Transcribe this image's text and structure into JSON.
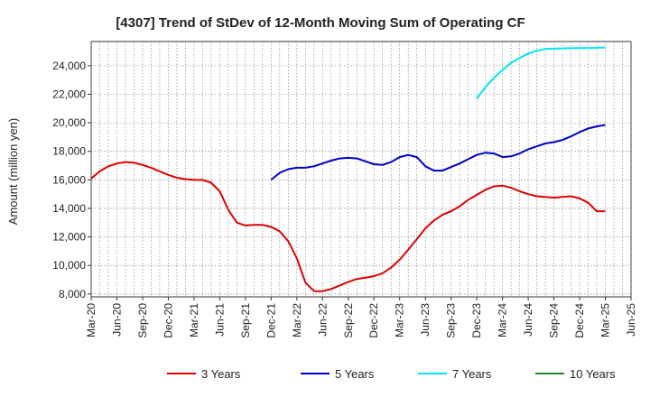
{
  "chart_data": {
    "type": "line",
    "title": "[4307]  Trend of StDev of 12-Month Moving Sum of Operating CF",
    "ylabel": "Amount (million yen)",
    "xlabel": "",
    "ylim": [
      7800,
      25700
    ],
    "yticks": [
      8000,
      10000,
      12000,
      14000,
      16000,
      18000,
      20000,
      22000,
      24000
    ],
    "ytick_labels": [
      "8,000",
      "10,000",
      "12,000",
      "14,000",
      "16,000",
      "18,000",
      "20,000",
      "22,000",
      "24,000"
    ],
    "xrange": [
      "2020-03",
      "2025-06"
    ],
    "xticks": [
      "2020-03",
      "2020-06",
      "2020-09",
      "2020-12",
      "2021-03",
      "2021-06",
      "2021-09",
      "2021-12",
      "2022-03",
      "2022-06",
      "2022-09",
      "2022-12",
      "2023-03",
      "2023-06",
      "2023-09",
      "2023-12",
      "2024-03",
      "2024-06",
      "2024-09",
      "2024-12",
      "2025-03",
      "2025-06"
    ],
    "xtick_labels": [
      "Mar-20",
      "Jun-20",
      "Sep-20",
      "Dec-20",
      "Mar-21",
      "Jun-21",
      "Sep-21",
      "Dec-21",
      "Mar-22",
      "Jun-22",
      "Sep-22",
      "Dec-22",
      "Mar-23",
      "Jun-23",
      "Sep-23",
      "Dec-23",
      "Mar-24",
      "Jun-24",
      "Sep-24",
      "Dec-24",
      "Mar-25",
      "Jun-25"
    ],
    "grid": true,
    "legend_position": "bottom",
    "series": [
      {
        "name": "3 Years",
        "color": "#e00000",
        "x": [
          "2020-03",
          "2020-04",
          "2020-05",
          "2020-06",
          "2020-07",
          "2020-08",
          "2020-09",
          "2020-10",
          "2020-11",
          "2020-12",
          "2021-01",
          "2021-02",
          "2021-03",
          "2021-04",
          "2021-05",
          "2021-06",
          "2021-07",
          "2021-08",
          "2021-09",
          "2021-10",
          "2021-11",
          "2021-12",
          "2022-01",
          "2022-02",
          "2022-03",
          "2022-04",
          "2022-05",
          "2022-06",
          "2022-07",
          "2022-08",
          "2022-09",
          "2022-10",
          "2022-11",
          "2022-12",
          "2023-01",
          "2023-02",
          "2023-03",
          "2023-04",
          "2023-05",
          "2023-06",
          "2023-07",
          "2023-08",
          "2023-09",
          "2023-10",
          "2023-11",
          "2023-12",
          "2024-01",
          "2024-02",
          "2024-03",
          "2024-04",
          "2024-05",
          "2024-06",
          "2024-07",
          "2024-08",
          "2024-09",
          "2024-10",
          "2024-11",
          "2024-12",
          "2025-01",
          "2025-02",
          "2025-03"
        ],
        "values": [
          16100,
          16600,
          16950,
          17150,
          17250,
          17200,
          17050,
          16850,
          16600,
          16350,
          16150,
          16050,
          16000,
          16000,
          15800,
          15200,
          13900,
          13000,
          12800,
          12850,
          12850,
          12700,
          12400,
          11700,
          10500,
          8800,
          8200,
          8200,
          8350,
          8600,
          8850,
          9050,
          9150,
          9250,
          9450,
          9850,
          10400,
          11100,
          11850,
          12600,
          13150,
          13550,
          13800,
          14150,
          14600,
          14950,
          15300,
          15550,
          15600,
          15450,
          15200,
          15000,
          14850,
          14800,
          14750,
          14800,
          14850,
          14700,
          14400,
          13800,
          13800
        ]
      },
      {
        "name": "5 Years",
        "color": "#0000cc",
        "x": [
          "2021-12",
          "2022-01",
          "2022-02",
          "2022-03",
          "2022-04",
          "2022-05",
          "2022-06",
          "2022-07",
          "2022-08",
          "2022-09",
          "2022-10",
          "2022-11",
          "2022-12",
          "2023-01",
          "2023-02",
          "2023-03",
          "2023-04",
          "2023-05",
          "2023-06",
          "2023-07",
          "2023-08",
          "2023-09",
          "2023-10",
          "2023-11",
          "2023-12",
          "2024-01",
          "2024-02",
          "2024-03",
          "2024-04",
          "2024-05",
          "2024-06",
          "2024-07",
          "2024-08",
          "2024-09",
          "2024-10",
          "2024-11",
          "2024-12",
          "2025-01",
          "2025-02",
          "2025-03"
        ],
        "values": [
          16000,
          16500,
          16750,
          16850,
          16850,
          16950,
          17150,
          17350,
          17500,
          17550,
          17500,
          17300,
          17100,
          17050,
          17250,
          17600,
          17750,
          17600,
          16950,
          16650,
          16650,
          16900,
          17150,
          17450,
          17750,
          17900,
          17850,
          17600,
          17650,
          17850,
          18150,
          18350,
          18550,
          18650,
          18800,
          19050,
          19350,
          19600,
          19750,
          19850
        ]
      },
      {
        "name": "7 Years",
        "color": "#00e5ee",
        "x": [
          "2023-12",
          "2024-01",
          "2024-02",
          "2024-03",
          "2024-04",
          "2024-05",
          "2024-06",
          "2024-07",
          "2024-08",
          "2024-09",
          "2024-10",
          "2024-11",
          "2024-12",
          "2025-01",
          "2025-02",
          "2025-03"
        ],
        "values": [
          21700,
          22500,
          23150,
          23700,
          24200,
          24550,
          24850,
          25050,
          25180,
          25200,
          25220,
          25230,
          25240,
          25250,
          25260,
          25280
        ]
      },
      {
        "name": "10 Years",
        "color": "#228b22",
        "x": [],
        "values": []
      }
    ]
  }
}
